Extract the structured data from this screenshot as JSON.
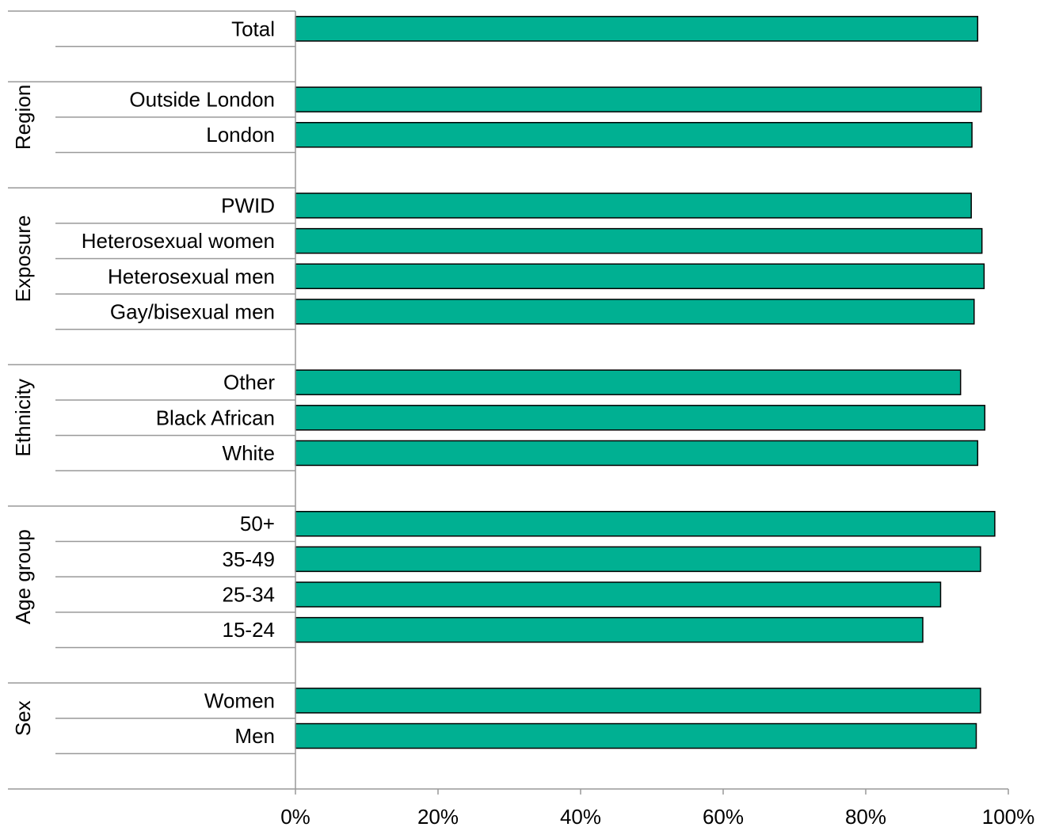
{
  "chart_data": {
    "type": "bar",
    "orientation": "horizontal",
    "bar_color": "#00B092",
    "bar_stroke": "#000000",
    "xlim": [
      0,
      100
    ],
    "xticks": [
      "0%",
      "20%",
      "40%",
      "60%",
      "80%",
      "100%"
    ],
    "groups": [
      {
        "name": "",
        "items": [
          {
            "label": "Total",
            "value": 95.7
          }
        ]
      },
      {
        "name": "Region",
        "items": [
          {
            "label": "Outside London",
            "value": 96.2
          },
          {
            "label": "London",
            "value": 94.9
          }
        ]
      },
      {
        "name": "Exposure",
        "items": [
          {
            "label": "PWID",
            "value": 94.8
          },
          {
            "label": "Heterosexual women",
            "value": 96.3
          },
          {
            "label": "Heterosexual men",
            "value": 96.6
          },
          {
            "label": "Gay/bisexual men",
            "value": 95.2
          }
        ]
      },
      {
        "name": "Ethnicity",
        "items": [
          {
            "label": "Other",
            "value": 93.3
          },
          {
            "label": "Black African",
            "value": 96.7
          },
          {
            "label": "White",
            "value": 95.7
          }
        ]
      },
      {
        "name": "Age group",
        "items": [
          {
            "label": "50+",
            "value": 98.1
          },
          {
            "label": "35-49",
            "value": 96.1
          },
          {
            "label": "25-34",
            "value": 90.5
          },
          {
            "label": "15-24",
            "value": 88.0
          }
        ]
      },
      {
        "name": "Sex",
        "items": [
          {
            "label": "Women",
            "value": 96.1
          },
          {
            "label": "Men",
            "value": 95.5
          }
        ]
      }
    ]
  }
}
